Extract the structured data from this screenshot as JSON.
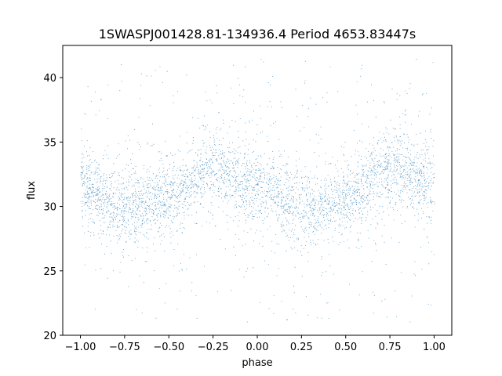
{
  "chart_data": {
    "type": "scatter",
    "title": "1SWASPJ001428.81-134936.4 Period 4653.83447s",
    "xlabel": "phase",
    "ylabel": "flux",
    "xlim": [
      -1.1,
      1.1
    ],
    "ylim": [
      20.0,
      42.5
    ],
    "x_ticks": [
      -1.0,
      -0.75,
      -0.5,
      -0.25,
      0.0,
      0.25,
      0.5,
      0.75,
      1.0
    ],
    "x_tick_labels": [
      "−1.00",
      "−0.75",
      "−0.50",
      "−0.25",
      "0.00",
      "0.25",
      "0.50",
      "0.75",
      "1.00"
    ],
    "y_ticks": [
      20,
      25,
      30,
      35,
      40
    ],
    "y_tick_labels": [
      "20",
      "25",
      "30",
      "35",
      "40"
    ],
    "grid": false,
    "legend": "none",
    "color": "#1f77b4",
    "series": [
      {
        "phase_range": [
          -1.0,
          1.0
        ],
        "flux_mean_curve": {
          "x": [
            -1.0,
            -0.75,
            -0.5,
            -0.25,
            0.0,
            0.25,
            0.5,
            0.75,
            1.0
          ],
          "y": [
            31.5,
            30.0,
            30.6,
            33.0,
            31.5,
            30.0,
            30.6,
            33.0,
            31.5
          ]
        },
        "flux_range": [
          21.0,
          41.5
        ]
      }
    ]
  }
}
